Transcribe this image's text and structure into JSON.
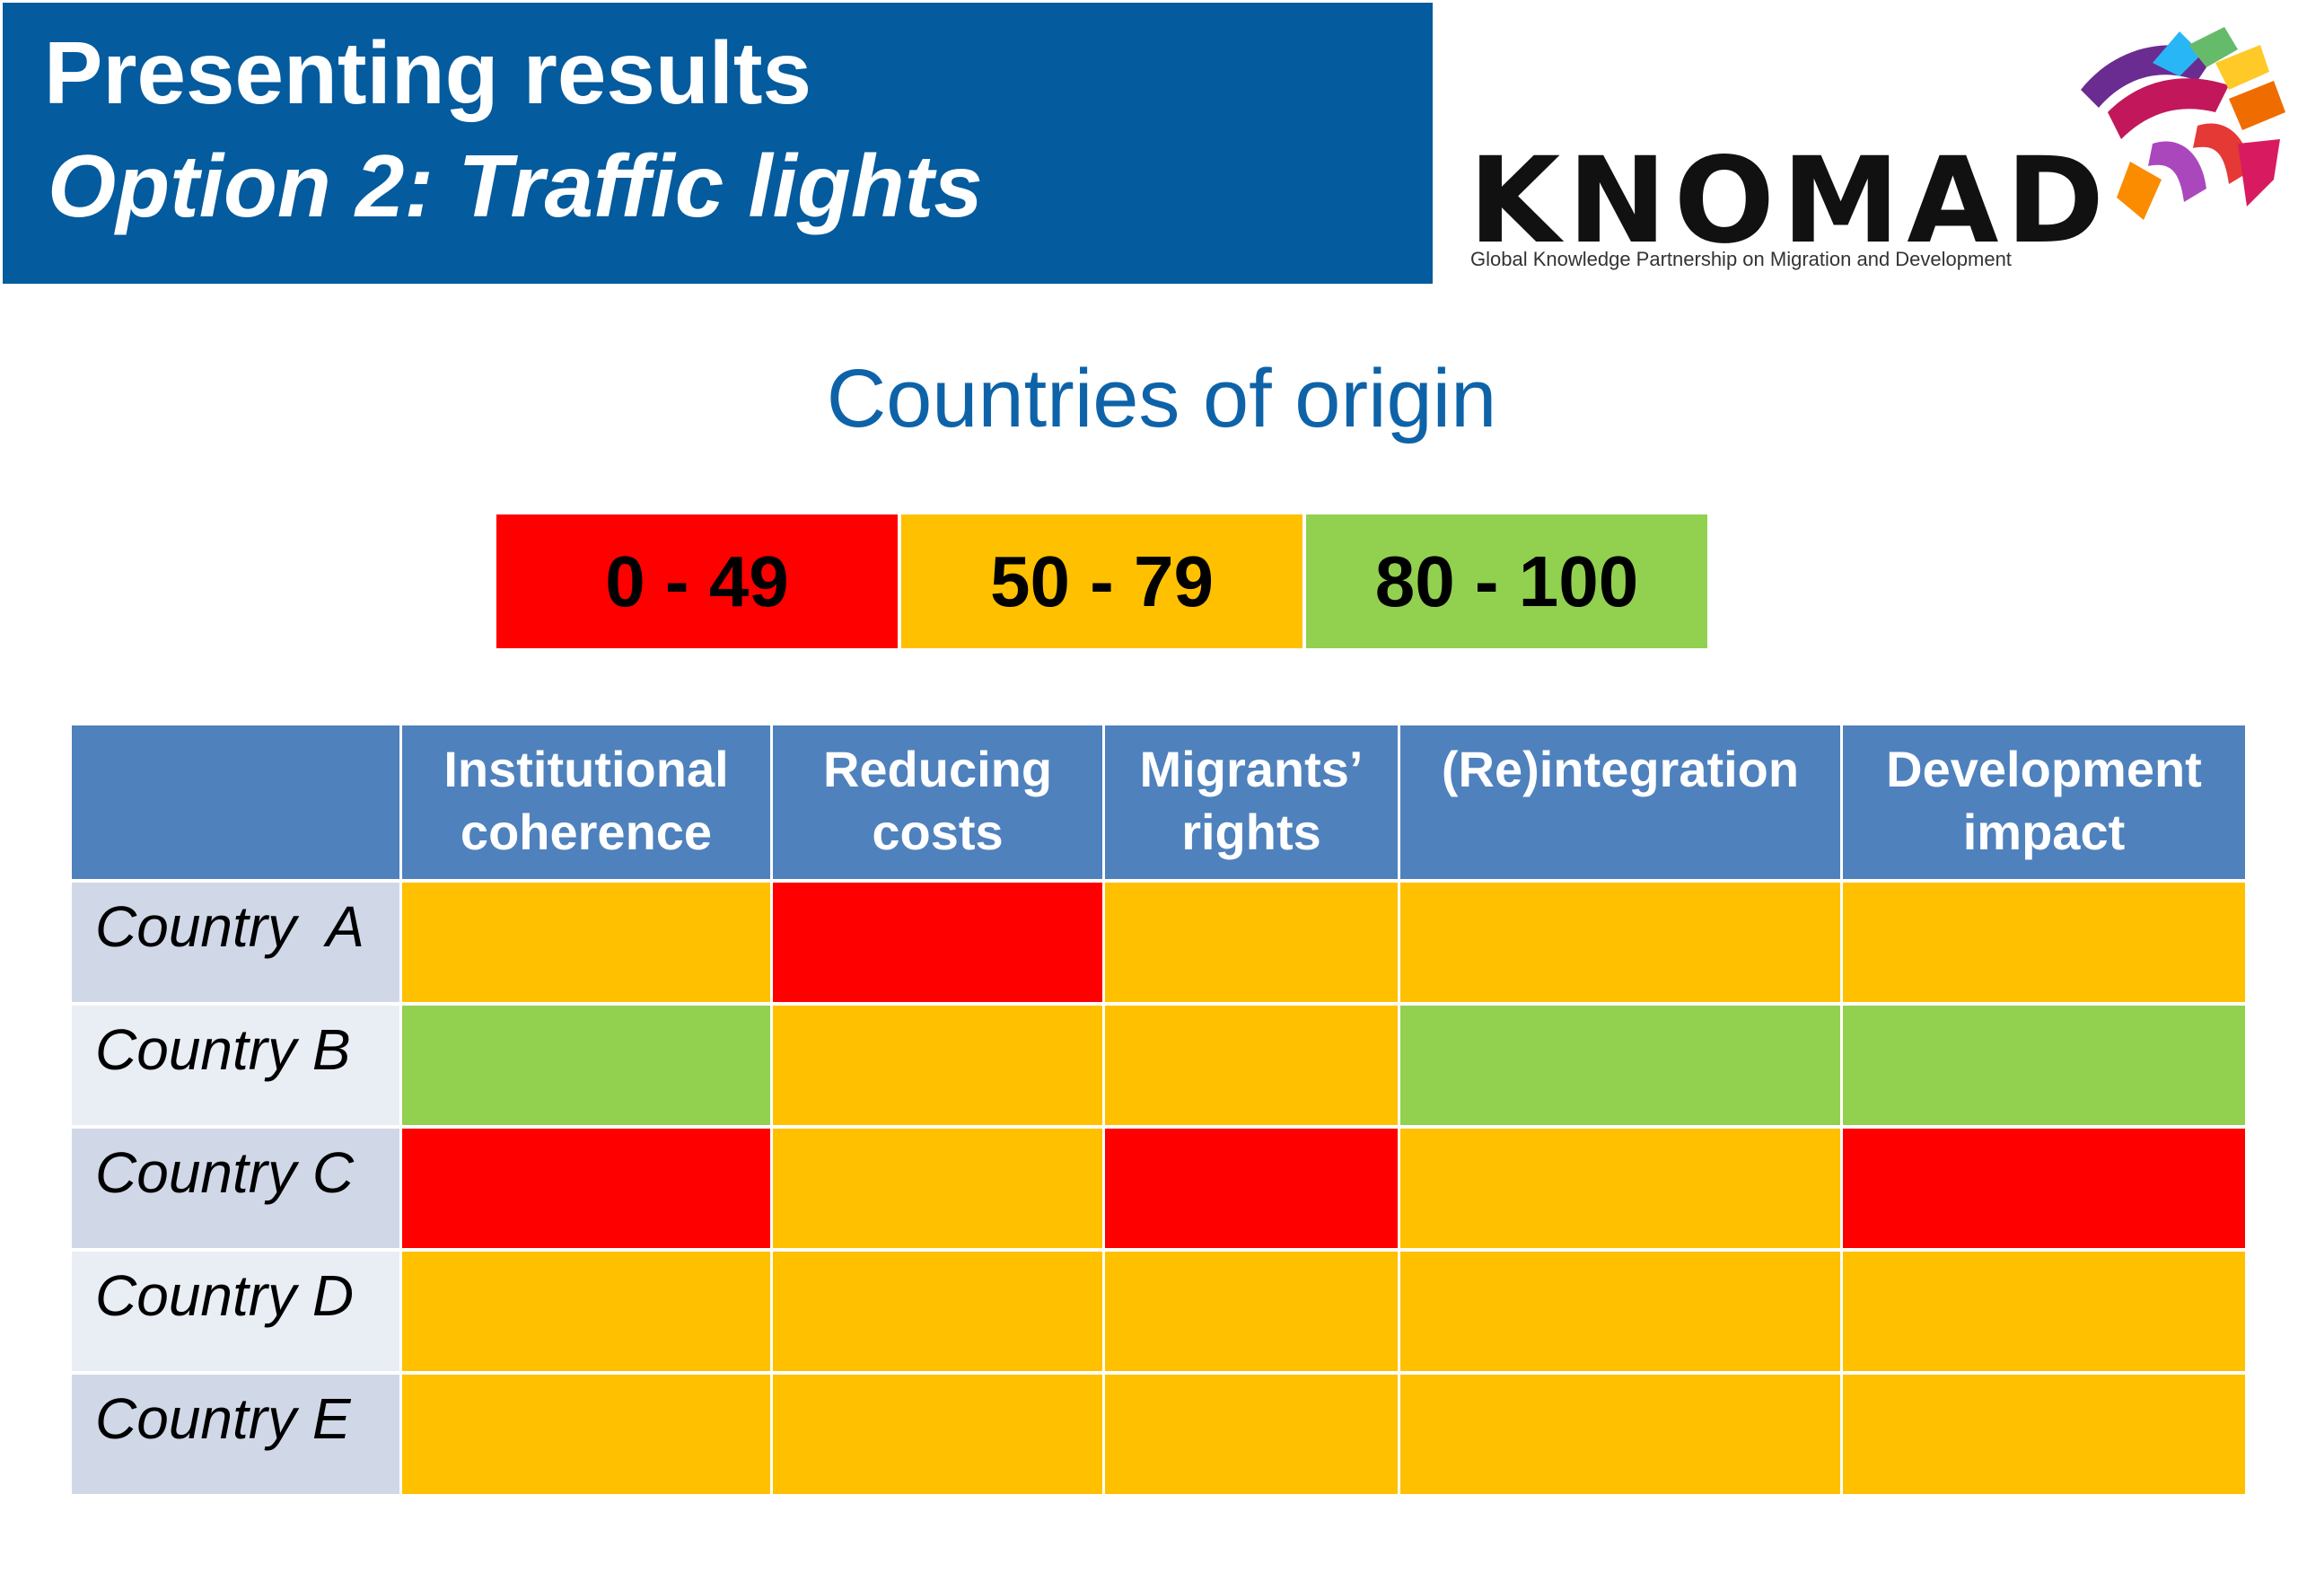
{
  "slide": {
    "title_line1": "Presenting results",
    "title_line2": "Option 2: Traffic lights",
    "subtitle": "Countries of origin",
    "colors": {
      "banner": "#045b9e",
      "subtitle": "#0e63a8",
      "header": "#4f81bd",
      "red": "#ff0000",
      "amber": "#ffc000",
      "green": "#92d050"
    }
  },
  "logo": {
    "word": "KNOMAD",
    "tagline": "Global Knowledge Partnership on Migration and Development"
  },
  "legend": [
    {
      "label": "0 - 49",
      "color": "#ff0000"
    },
    {
      "label": "50 - 79",
      "color": "#ffc000"
    },
    {
      "label": "80 - 100",
      "color": "#92d050"
    }
  ],
  "table": {
    "columns": [
      "",
      "Institutional\ncoherence",
      "Reducing\ncosts",
      "Migrants’\nrights",
      "(Re)integration",
      "Development\nimpact"
    ],
    "rows": [
      {
        "label": "Country  A",
        "ratings": [
          "amber",
          "red",
          "amber",
          "amber",
          "amber"
        ]
      },
      {
        "label": "Country B",
        "ratings": [
          "green",
          "amber",
          "amber",
          "green",
          "green"
        ]
      },
      {
        "label": "Country C",
        "ratings": [
          "red",
          "amber",
          "red",
          "amber",
          "red"
        ]
      },
      {
        "label": "Country D",
        "ratings": [
          "amber",
          "amber",
          "amber",
          "amber",
          "amber"
        ]
      },
      {
        "label": "Country E",
        "ratings": [
          "amber",
          "amber",
          "amber",
          "amber",
          "amber"
        ]
      }
    ]
  }
}
